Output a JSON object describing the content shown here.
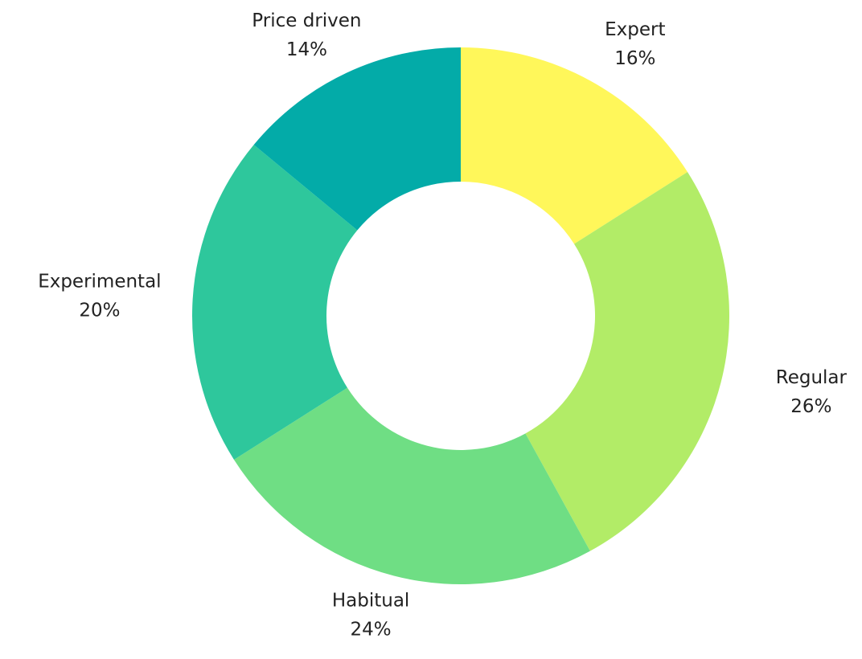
{
  "chart_data": {
    "type": "donut",
    "categories": [
      "Expert",
      "Regular",
      "Habitual",
      "Experimental",
      "Price driven"
    ],
    "values": [
      16,
      26,
      24,
      20,
      14
    ],
    "value_labels": [
      "16%",
      "26%",
      "24%",
      "20%",
      "14%"
    ],
    "colors": [
      "#fff75a",
      "#b2ec67",
      "#6fde84",
      "#2ec79c",
      "#03aba8"
    ]
  }
}
